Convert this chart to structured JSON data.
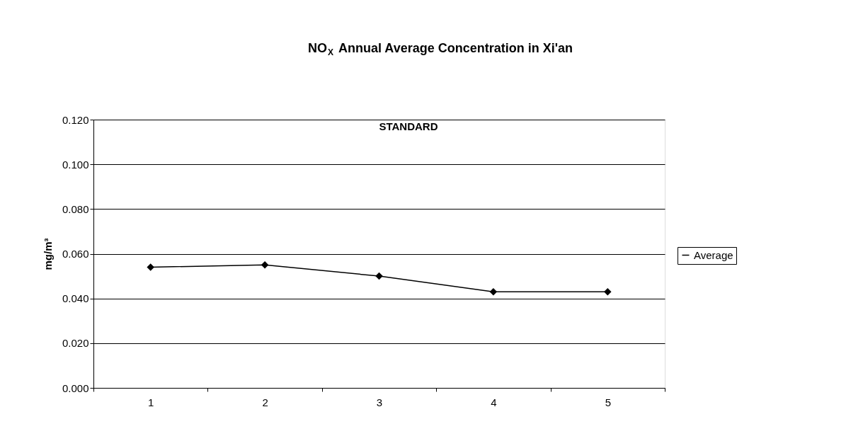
{
  "chart_data": {
    "type": "line",
    "title": "NO$_{X}$ Annual Average Concentration in Xi'an",
    "ylabel": "mg/m³",
    "categories": [
      "1",
      "2",
      "3",
      "4",
      "5"
    ],
    "series": [
      {
        "name": "Average",
        "color": "#000000",
        "values": [
          0.054,
          0.055,
          0.05,
          0.043,
          0.043
        ]
      }
    ],
    "ylim": [
      0,
      0.12
    ],
    "yticks": [
      {
        "value": 0,
        "label": "0.000"
      },
      {
        "value": 0.02,
        "label": "0.020"
      },
      {
        "value": 0.04,
        "label": "0.040"
      },
      {
        "value": 0.06,
        "label": "0.060"
      },
      {
        "value": 0.08,
        "label": "0.080"
      },
      {
        "value": 0.1,
        "label": "0.100"
      },
      {
        "value": 0.12,
        "label": "0.120"
      }
    ],
    "annotations": [
      "STANDARD"
    ],
    "grid": "y",
    "legend": "right",
    "marker": "diamond",
    "line_style": "solid"
  }
}
